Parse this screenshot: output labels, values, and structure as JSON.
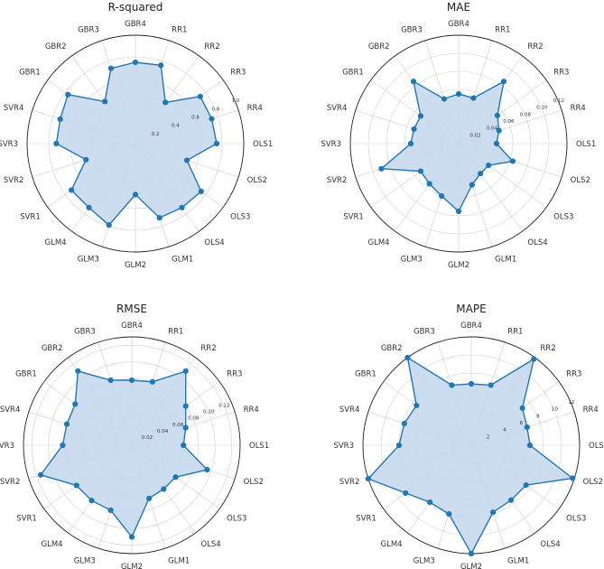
{
  "chart_data": [
    {
      "type": "radar",
      "title": "R-squared",
      "categories": [
        "OLS1",
        "OLS2",
        "OLS3",
        "OLS4",
        "GLM1",
        "GLM2",
        "GLM3",
        "GLM4",
        "SVR1",
        "SVR2",
        "SVR3",
        "SVR4",
        "GBR1",
        "GBR2",
        "GBR3",
        "GBR4",
        "RR1",
        "RR2",
        "RR3",
        "RR4"
      ],
      "values": [
        0.75,
        0.5,
        0.75,
        0.73,
        0.72,
        0.47,
        0.79,
        0.73,
        0.73,
        0.48,
        0.73,
        0.73,
        0.77,
        0.48,
        0.73,
        0.75,
        0.76,
        0.47,
        0.74,
        0.74
      ],
      "rlim": [
        0,
        1.0
      ],
      "rticks": [
        "0.2",
        "0.4",
        "0.6",
        "0.8",
        "1.0"
      ],
      "grid": true,
      "colors": {
        "line": "#1f77b4",
        "fill": "#c6d9ee"
      }
    },
    {
      "type": "radar",
      "title": "MAE",
      "categories": [
        "OLS1",
        "OLS2",
        "OLS3",
        "OLS4",
        "GLM1",
        "GLM2",
        "GLM3",
        "GLM4",
        "SVR1",
        "SVR2",
        "SVR3",
        "SVR4",
        "GBR1",
        "GBR2",
        "GBR3",
        "GBR4",
        "RR1",
        "RR2",
        "RR3",
        "RR4"
      ],
      "values": [
        0.042,
        0.063,
        0.041,
        0.041,
        0.048,
        0.075,
        0.061,
        0.055,
        0.052,
        0.09,
        0.053,
        0.052,
        0.052,
        0.085,
        0.052,
        0.055,
        0.053,
        0.085,
        0.053,
        0.047
      ],
      "rlim": [
        0,
        0.12
      ],
      "rticks": [
        "0.02",
        "0.04",
        "0.06",
        "0.08",
        "0.10",
        "0.12"
      ],
      "grid": true,
      "colors": {
        "line": "#1f77b4",
        "fill": "#c6d9ee"
      }
    },
    {
      "type": "radar",
      "title": "RMSE",
      "categories": [
        "OLS1",
        "OLS2",
        "OLS3",
        "OLS4",
        "GLM1",
        "GLM2",
        "GLM3",
        "GLM4",
        "SVR1",
        "SVR2",
        "SVR3",
        "SVR4",
        "GBR1",
        "GBR2",
        "GBR3",
        "GBR4",
        "RR1",
        "RR2",
        "RR3",
        "RR4"
      ],
      "values": [
        0.062,
        0.095,
        0.065,
        0.065,
        0.067,
        0.11,
        0.082,
        0.082,
        0.082,
        0.115,
        0.083,
        0.082,
        0.084,
        0.11,
        0.082,
        0.078,
        0.08,
        0.11,
        0.08,
        0.068
      ],
      "rlim": [
        0,
        0.13
      ],
      "rticks": [
        "0.02",
        "0.04",
        "0.06",
        "0.08",
        "0.10",
        "0.12"
      ],
      "grid": true,
      "colors": {
        "line": "#1f77b4",
        "fill": "#c6d9ee"
      }
    },
    {
      "type": "radar",
      "title": "MAPE",
      "categories": [
        "OLS1",
        "OLS2",
        "OLS3",
        "OLS4",
        "GLM1",
        "GLM2",
        "GLM3",
        "GLM4",
        "SVR1",
        "SVR2",
        "SVR3",
        "SVR4",
        "GBR1",
        "GBR2",
        "GBR3",
        "GBR4",
        "RR1",
        "RR2",
        "RR3",
        "RR4"
      ],
      "values": [
        6.5,
        11.8,
        7.5,
        7.5,
        7.8,
        12.0,
        8.0,
        7.8,
        9.0,
        12.0,
        8.0,
        7.8,
        7.5,
        12.0,
        7.0,
        6.8,
        7.0,
        11.8,
        7.0,
        6.5
      ],
      "rlim": [
        0,
        12
      ],
      "rticks": [
        "2",
        "4",
        "6",
        "8",
        "10",
        "12"
      ],
      "grid": true,
      "colors": {
        "line": "#1f77b4",
        "fill": "#c6d9ee"
      }
    }
  ]
}
